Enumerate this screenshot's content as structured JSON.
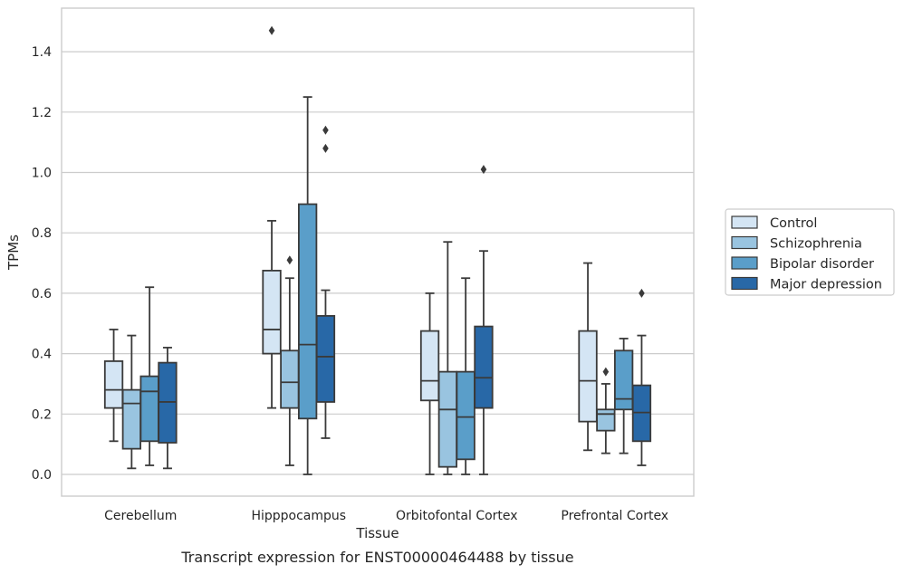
{
  "caption": "Transcript expression for ENST00000464488 by tissue",
  "chart_data": {
    "type": "boxplot",
    "title": "",
    "xlabel": "Tissue",
    "ylabel": "TPMs",
    "ylim": [
      -0.07,
      1.55
    ],
    "yticks": [
      0.0,
      0.2,
      0.4,
      0.6,
      0.8,
      1.0,
      1.2,
      1.4
    ],
    "ytick_labels": [
      "0.0",
      "0.2",
      "0.4",
      "0.6",
      "0.8",
      "1.0",
      "1.2",
      "1.4"
    ],
    "grid": "horizontal",
    "legend_position": "right",
    "categories": [
      "Cerebellum",
      "Hipppocampus",
      "Orbitofontal Cortex",
      "Prefrontal Cortex"
    ],
    "series": [
      {
        "name": "Control",
        "color": "#d4e5f4",
        "boxes": [
          {
            "whislo": 0.11,
            "q1": 0.22,
            "med": 0.28,
            "q3": 0.375,
            "whishi": 0.48,
            "fliers": []
          },
          {
            "whislo": 0.22,
            "q1": 0.4,
            "med": 0.48,
            "q3": 0.675,
            "whishi": 0.84,
            "fliers": [
              1.47
            ]
          },
          {
            "whislo": 0.0,
            "q1": 0.245,
            "med": 0.31,
            "q3": 0.475,
            "whishi": 0.6,
            "fliers": []
          },
          {
            "whislo": 0.08,
            "q1": 0.175,
            "med": 0.31,
            "q3": 0.475,
            "whishi": 0.7,
            "fliers": []
          }
        ]
      },
      {
        "name": "Schizophrenia",
        "color": "#99c4e0",
        "boxes": [
          {
            "whislo": 0.02,
            "q1": 0.085,
            "med": 0.235,
            "q3": 0.28,
            "whishi": 0.46,
            "fliers": []
          },
          {
            "whislo": 0.03,
            "q1": 0.22,
            "med": 0.305,
            "q3": 0.41,
            "whishi": 0.65,
            "fliers": [
              0.71
            ]
          },
          {
            "whislo": 0.0,
            "q1": 0.025,
            "med": 0.215,
            "q3": 0.34,
            "whishi": 0.77,
            "fliers": []
          },
          {
            "whislo": 0.07,
            "q1": 0.145,
            "med": 0.2,
            "q3": 0.215,
            "whishi": 0.3,
            "fliers": [
              0.34
            ]
          }
        ]
      },
      {
        "name": "Bipolar disorder",
        "color": "#5a9ec9",
        "boxes": [
          {
            "whislo": 0.03,
            "q1": 0.11,
            "med": 0.275,
            "q3": 0.325,
            "whishi": 0.62,
            "fliers": []
          },
          {
            "whislo": 0.0,
            "q1": 0.185,
            "med": 0.43,
            "q3": 0.895,
            "whishi": 1.25,
            "fliers": []
          },
          {
            "whislo": 0.0,
            "q1": 0.05,
            "med": 0.19,
            "q3": 0.34,
            "whishi": 0.65,
            "fliers": []
          },
          {
            "whislo": 0.07,
            "q1": 0.215,
            "med": 0.25,
            "q3": 0.41,
            "whishi": 0.45,
            "fliers": []
          }
        ]
      },
      {
        "name": "Major depression",
        "color": "#2868a7",
        "boxes": [
          {
            "whislo": 0.02,
            "q1": 0.105,
            "med": 0.24,
            "q3": 0.37,
            "whishi": 0.42,
            "fliers": []
          },
          {
            "whislo": 0.12,
            "q1": 0.24,
            "med": 0.39,
            "q3": 0.525,
            "whishi": 0.61,
            "fliers": [
              1.08,
              1.14
            ]
          },
          {
            "whislo": 0.0,
            "q1": 0.22,
            "med": 0.32,
            "q3": 0.49,
            "whishi": 0.74,
            "fliers": [
              1.01
            ]
          },
          {
            "whislo": 0.03,
            "q1": 0.11,
            "med": 0.205,
            "q3": 0.295,
            "whishi": 0.46,
            "fliers": [
              0.6
            ]
          }
        ]
      }
    ]
  }
}
